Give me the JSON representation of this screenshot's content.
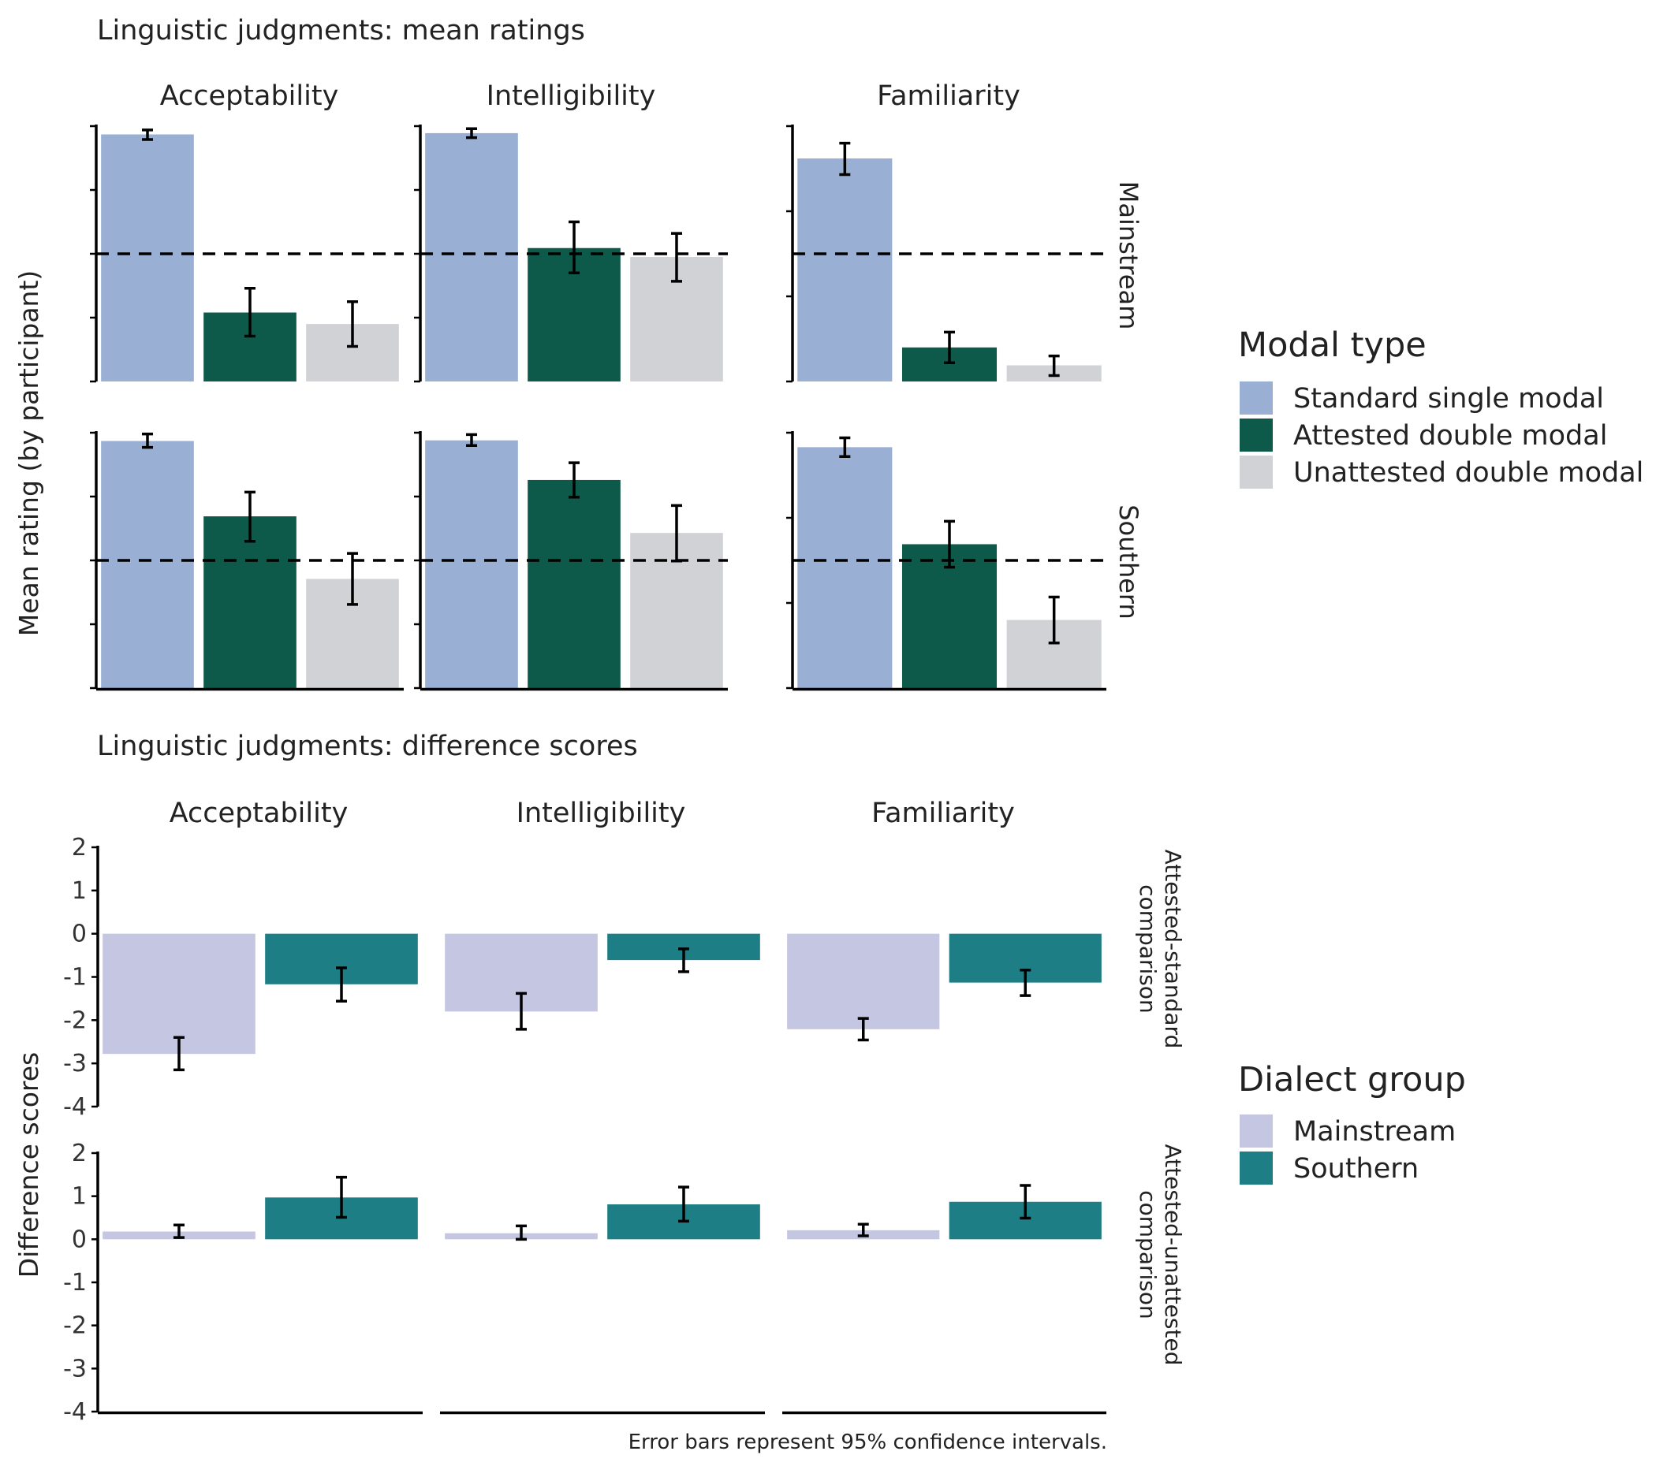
{
  "chart_data": [
    {
      "type": "bar",
      "title": "Linguistic judgments: mean ratings",
      "ylabel": "Mean rating (by participant)",
      "xlabel": "",
      "legend": {
        "title": "Modal type",
        "placement": "right",
        "items": [
          {
            "name": "Standard single modal",
            "color": "#99AFD4"
          },
          {
            "name": "Attested double modal",
            "color": "#0E5A4A"
          },
          {
            "name": "Unattested double modal",
            "color": "#D1D2D5"
          }
        ]
      },
      "grid": false,
      "facet_columns": [
        "Acceptability",
        "Intelligibility",
        "Familiarity"
      ],
      "facet_rows": [
        "Mainstream",
        "Southern"
      ],
      "categories": [
        "Standard single modal",
        "Attested double modal",
        "Unattested double modal"
      ],
      "panels": [
        {
          "row": "Mainstream",
          "column": "Acceptability",
          "ylim": [
            1,
            5
          ],
          "yticks": [
            1,
            2,
            3,
            4,
            5
          ],
          "reference_line": 3,
          "values": [
            4.87,
            2.08,
            1.9
          ],
          "ci_low": [
            4.79,
            1.71,
            1.55
          ],
          "ci_high": [
            4.94,
            2.46,
            2.25
          ]
        },
        {
          "row": "Mainstream",
          "column": "Intelligibility",
          "ylim": [
            1,
            5
          ],
          "yticks": [
            1,
            2,
            3,
            4,
            5
          ],
          "reference_line": 3,
          "values": [
            4.89,
            3.09,
            2.95
          ],
          "ci_low": [
            4.82,
            2.7,
            2.57
          ],
          "ci_high": [
            4.96,
            3.5,
            3.32
          ]
        },
        {
          "row": "Mainstream",
          "column": "Familiarity",
          "ylim": [
            1,
            4
          ],
          "yticks": [
            1,
            2,
            3,
            4
          ],
          "reference_line": 2.5,
          "values": [
            3.62,
            1.4,
            1.19
          ],
          "ci_low": [
            3.43,
            1.22,
            1.07
          ],
          "ci_high": [
            3.8,
            1.58,
            1.3
          ]
        },
        {
          "row": "Southern",
          "column": "Acceptability",
          "ylim": [
            1,
            5
          ],
          "yticks": [
            1,
            2,
            3,
            4,
            5
          ],
          "reference_line": 3,
          "values": [
            4.87,
            3.69,
            2.71
          ],
          "ci_low": [
            4.77,
            3.3,
            2.31
          ],
          "ci_high": [
            4.98,
            4.07,
            3.11
          ]
        },
        {
          "row": "Southern",
          "column": "Intelligibility",
          "ylim": [
            1,
            5
          ],
          "yticks": [
            1,
            2,
            3,
            4,
            5
          ],
          "reference_line": 3,
          "values": [
            4.88,
            4.26,
            3.43
          ],
          "ci_low": [
            4.8,
            3.99,
            2.99
          ],
          "ci_high": [
            4.97,
            4.53,
            3.86
          ]
        },
        {
          "row": "Southern",
          "column": "Familiarity",
          "ylim": [
            1,
            4
          ],
          "yticks": [
            1,
            2,
            3,
            4
          ],
          "reference_line": 2.5,
          "values": [
            3.83,
            2.69,
            1.8
          ],
          "ci_low": [
            3.72,
            2.42,
            1.53
          ],
          "ci_high": [
            3.94,
            2.96,
            2.07
          ]
        }
      ]
    },
    {
      "type": "bar",
      "title": "Linguistic judgments: difference scores",
      "ylabel": "Difference scores",
      "xlabel": "",
      "legend": {
        "title": "Dialect group",
        "placement": "right",
        "items": [
          {
            "name": "Mainstream",
            "color": "#C5C6E1"
          },
          {
            "name": "Southern",
            "color": "#1E7E85"
          }
        ]
      },
      "grid": false,
      "facet_columns": [
        "Acceptability",
        "Intelligibility",
        "Familiarity"
      ],
      "facet_rows": [
        "Attested-standard comparison",
        "Attested-unattested comparison"
      ],
      "categories": [
        "Mainstream",
        "Southern"
      ],
      "ylim": [
        -4,
        2
      ],
      "yticks": [
        -4,
        -3,
        -2,
        -1,
        0,
        1,
        2
      ],
      "panels": [
        {
          "row": "Attested-standard comparison",
          "column": "Acceptability",
          "values": [
            -2.78,
            -1.17
          ],
          "ci_low": [
            -3.15,
            -1.56
          ],
          "ci_high": [
            -2.4,
            -0.79
          ]
        },
        {
          "row": "Attested-standard comparison",
          "column": "Intelligibility",
          "values": [
            -1.8,
            -0.61
          ],
          "ci_low": [
            -2.21,
            -0.88
          ],
          "ci_high": [
            -1.38,
            -0.35
          ]
        },
        {
          "row": "Attested-standard comparison",
          "column": "Familiarity",
          "values": [
            -2.21,
            -1.13
          ],
          "ci_low": [
            -2.46,
            -1.43
          ],
          "ci_high": [
            -1.96,
            -0.84
          ]
        },
        {
          "row": "Attested-unattested comparison",
          "column": "Acceptability",
          "values": [
            0.18,
            0.97
          ],
          "ci_low": [
            0.04,
            0.51
          ],
          "ci_high": [
            0.33,
            1.44
          ]
        },
        {
          "row": "Attested-unattested comparison",
          "column": "Intelligibility",
          "values": [
            0.14,
            0.81
          ],
          "ci_low": [
            0.0,
            0.42
          ],
          "ci_high": [
            0.31,
            1.21
          ]
        },
        {
          "row": "Attested-unattested comparison",
          "column": "Familiarity",
          "values": [
            0.21,
            0.87
          ],
          "ci_low": [
            0.08,
            0.49
          ],
          "ci_high": [
            0.35,
            1.25
          ]
        }
      ]
    }
  ],
  "labels": {
    "top_title": "Linguistic judgments: mean ratings",
    "bottom_title": "Linguistic judgments: difference scores",
    "top_ylabel": "Mean rating (by participant)",
    "bottom_ylabel": "Difference scores",
    "col_acceptability": "Acceptability",
    "col_intelligibility": "Intelligibility",
    "col_familiarity": "Familiarity",
    "row_mainstream": "Mainstream",
    "row_southern": "Southern",
    "row_attested_standard": [
      "Attested-standard",
      "comparison"
    ],
    "row_attested_unattested": [
      "Attested-unattested",
      "comparison"
    ],
    "legend_modal_title": "Modal type",
    "legend_modal_1": "Standard single modal",
    "legend_modal_2": "Attested double modal",
    "legend_modal_3": "Unattested double modal",
    "legend_dialect_title": "Dialect group",
    "legend_dialect_1": "Mainstream",
    "legend_dialect_2": "Southern",
    "caption": "Error bars represent 95% confidence intervals."
  },
  "colors": {
    "standard_single_modal": "#99AFD4",
    "attested_double_modal": "#0E5A4A",
    "unattested_double_modal": "#D1D2D5",
    "mainstream": "#C5C6E1",
    "southern": "#1E7E85"
  }
}
